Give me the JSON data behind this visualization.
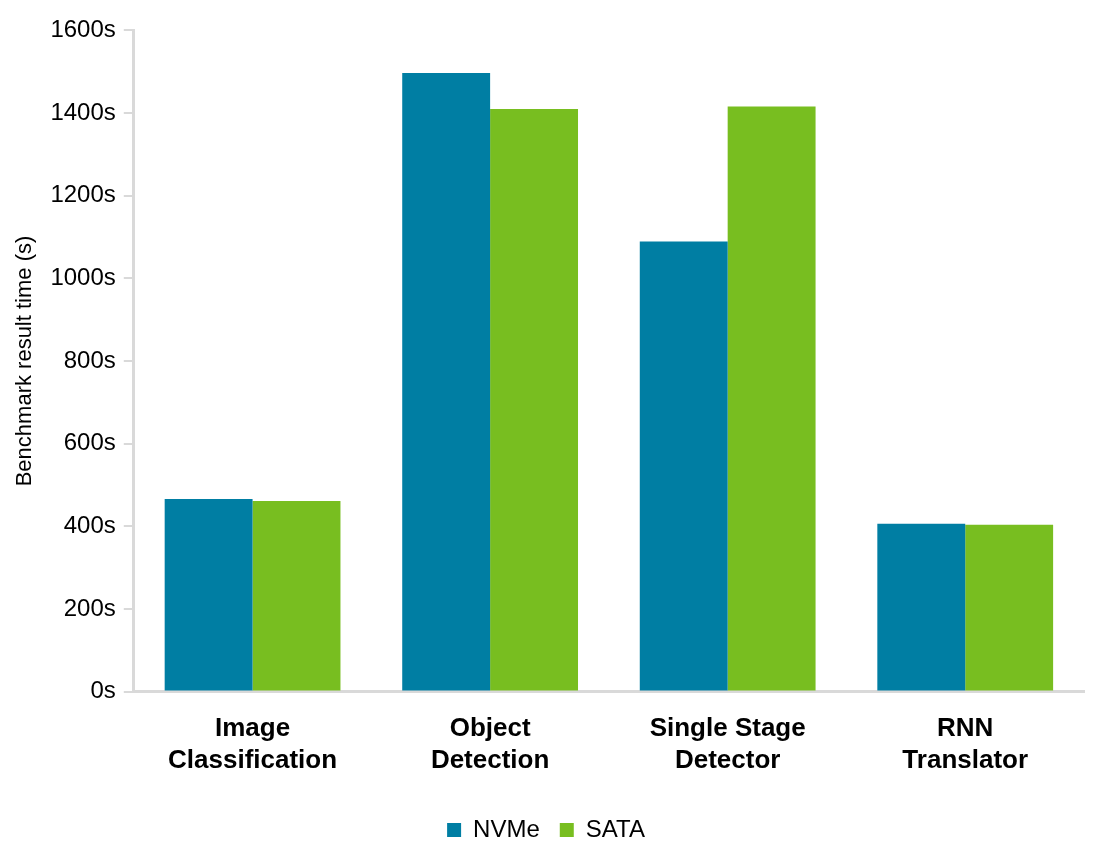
{
  "chart_data": {
    "type": "bar",
    "ylabel": "Benchmark result time (s)",
    "categories": [
      "Image Classification",
      "Object Detection",
      "Single Stage Detector",
      "RNN Translator"
    ],
    "series": [
      {
        "name": "NVMe",
        "color": "#007ea3",
        "values": [
          466,
          1497,
          1089,
          406
        ]
      },
      {
        "name": "SATA",
        "color": "#78be20",
        "values": [
          461,
          1410,
          1416,
          404
        ]
      }
    ],
    "ylim": [
      0,
      1600
    ],
    "yticks": [
      {
        "value": 0,
        "label": "0s"
      },
      {
        "value": 200,
        "label": "200s"
      },
      {
        "value": 400,
        "label": "400s"
      },
      {
        "value": 600,
        "label": "600s"
      },
      {
        "value": 800,
        "label": "800s"
      },
      {
        "value": 1000,
        "label": "1000s"
      },
      {
        "value": 1200,
        "label": "1200s"
      },
      {
        "value": 1400,
        "label": "1400s"
      },
      {
        "value": 1600,
        "label": "1600s"
      }
    ],
    "grid": false,
    "legend": "bottom"
  }
}
